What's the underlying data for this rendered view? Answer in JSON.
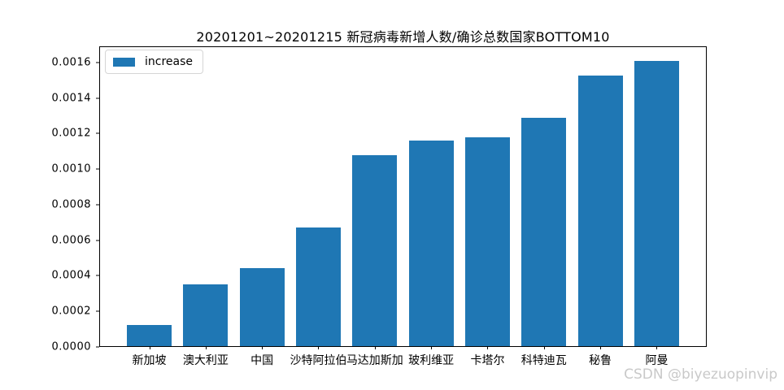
{
  "figure": {
    "watermark": "CSDN @biyezuopinvip"
  },
  "chart_data": {
    "type": "bar",
    "title": "20201201~20201215 新冠病毒新增人数/确诊总数国家BOTTOM10",
    "categories": [
      "新加坡",
      "澳大利亚",
      "中国",
      "沙特阿拉伯",
      "马达加斯加",
      "玻利维亚",
      "卡塔尔",
      "科特迪瓦",
      "秘鲁",
      "阿曼"
    ],
    "series": [
      {
        "name": "increase",
        "values": [
          0.00012,
          0.00035,
          0.00044,
          0.00067,
          0.00108,
          0.00116,
          0.00118,
          0.00129,
          0.00153,
          0.00161
        ]
      }
    ],
    "xlabel": "",
    "ylabel": "",
    "ylim": [
      0,
      0.00169
    ],
    "yticks": [
      0.0,
      0.0002,
      0.0004,
      0.0006,
      0.0008,
      0.001,
      0.0012,
      0.0014,
      0.0016
    ],
    "ytick_decimals": 4,
    "legend_position": "upper-left",
    "grid": false,
    "bar_color": "#1f77b4"
  }
}
